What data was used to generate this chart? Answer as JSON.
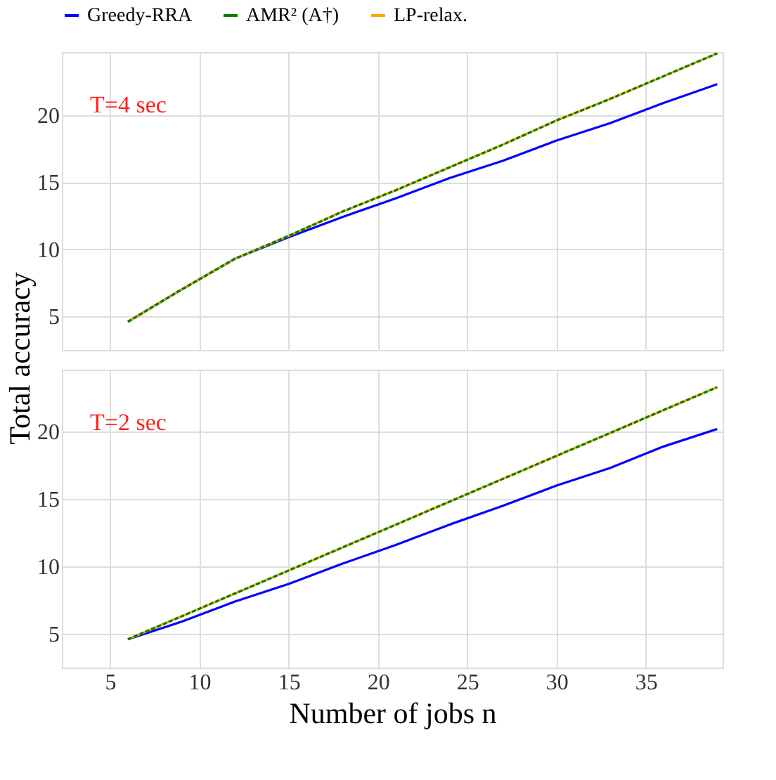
{
  "chart_data": [
    {
      "type": "line",
      "ylabel": "Total accuracy",
      "x": [
        6,
        9,
        12,
        15,
        18,
        21,
        24,
        27,
        30,
        33,
        36,
        39
      ],
      "xlim": [
        2.3,
        39.3
      ],
      "ylim": [
        2.5,
        24.7
      ],
      "xticks": [
        5,
        10,
        15,
        20,
        25,
        30,
        35
      ],
      "yticks": [
        5,
        10,
        15,
        20
      ],
      "grid": true,
      "legend": "top",
      "tick_labels": "y",
      "annotations": [
        "T=4 sec"
      ],
      "line_style": "solid",
      "marker": "none",
      "series": [
        {
          "name": "Greedy-RRA",
          "color": "#0000ff",
          "values": [
            4.6,
            7.0,
            9.3,
            10.9,
            12.4,
            13.8,
            15.3,
            16.6,
            18.1,
            19.4,
            20.9,
            22.3
          ]
        },
        {
          "name": "AMR² (A†)",
          "color": "#008000",
          "line_style": "dashed",
          "values": [
            4.6,
            7.0,
            9.3,
            11.0,
            12.8,
            14.4,
            16.1,
            17.8,
            19.6,
            21.2,
            22.9,
            24.6
          ]
        },
        {
          "name": "LP-relax.",
          "color": "#ffa500",
          "values": [
            4.6,
            7.0,
            9.3,
            11.0,
            12.8,
            14.4,
            16.1,
            17.8,
            19.6,
            21.2,
            22.9,
            24.6
          ]
        }
      ]
    },
    {
      "type": "line",
      "xlabel": "Number of jobs n",
      "x": [
        6,
        9,
        12,
        15,
        18,
        21,
        24,
        27,
        30,
        33,
        36,
        39
      ],
      "xlim": [
        2.3,
        39.3
      ],
      "ylim": [
        2.5,
        24.6
      ],
      "xticks": [
        5,
        10,
        15,
        20,
        25,
        30,
        35
      ],
      "yticks": [
        5,
        10,
        15,
        20
      ],
      "grid": true,
      "annotations": [
        "T=2 sec"
      ],
      "line_style": "solid",
      "marker": "none",
      "series": [
        {
          "color": "#0000ff",
          "values": [
            4.6,
            5.9,
            7.4,
            8.7,
            10.2,
            11.6,
            13.1,
            14.5,
            16.0,
            17.3,
            18.9,
            20.2
          ]
        },
        {
          "color": "#008000",
          "line_style": "dashed",
          "values": [
            4.6,
            6.3,
            8.0,
            9.7,
            11.4,
            13.1,
            14.8,
            16.5,
            18.2,
            19.9,
            21.6,
            23.3
          ]
        },
        {
          "color": "#ffa500",
          "values": [
            4.6,
            6.3,
            8.0,
            9.7,
            11.4,
            13.1,
            14.8,
            16.5,
            18.2,
            19.9,
            21.6,
            23.3
          ]
        }
      ]
    }
  ]
}
